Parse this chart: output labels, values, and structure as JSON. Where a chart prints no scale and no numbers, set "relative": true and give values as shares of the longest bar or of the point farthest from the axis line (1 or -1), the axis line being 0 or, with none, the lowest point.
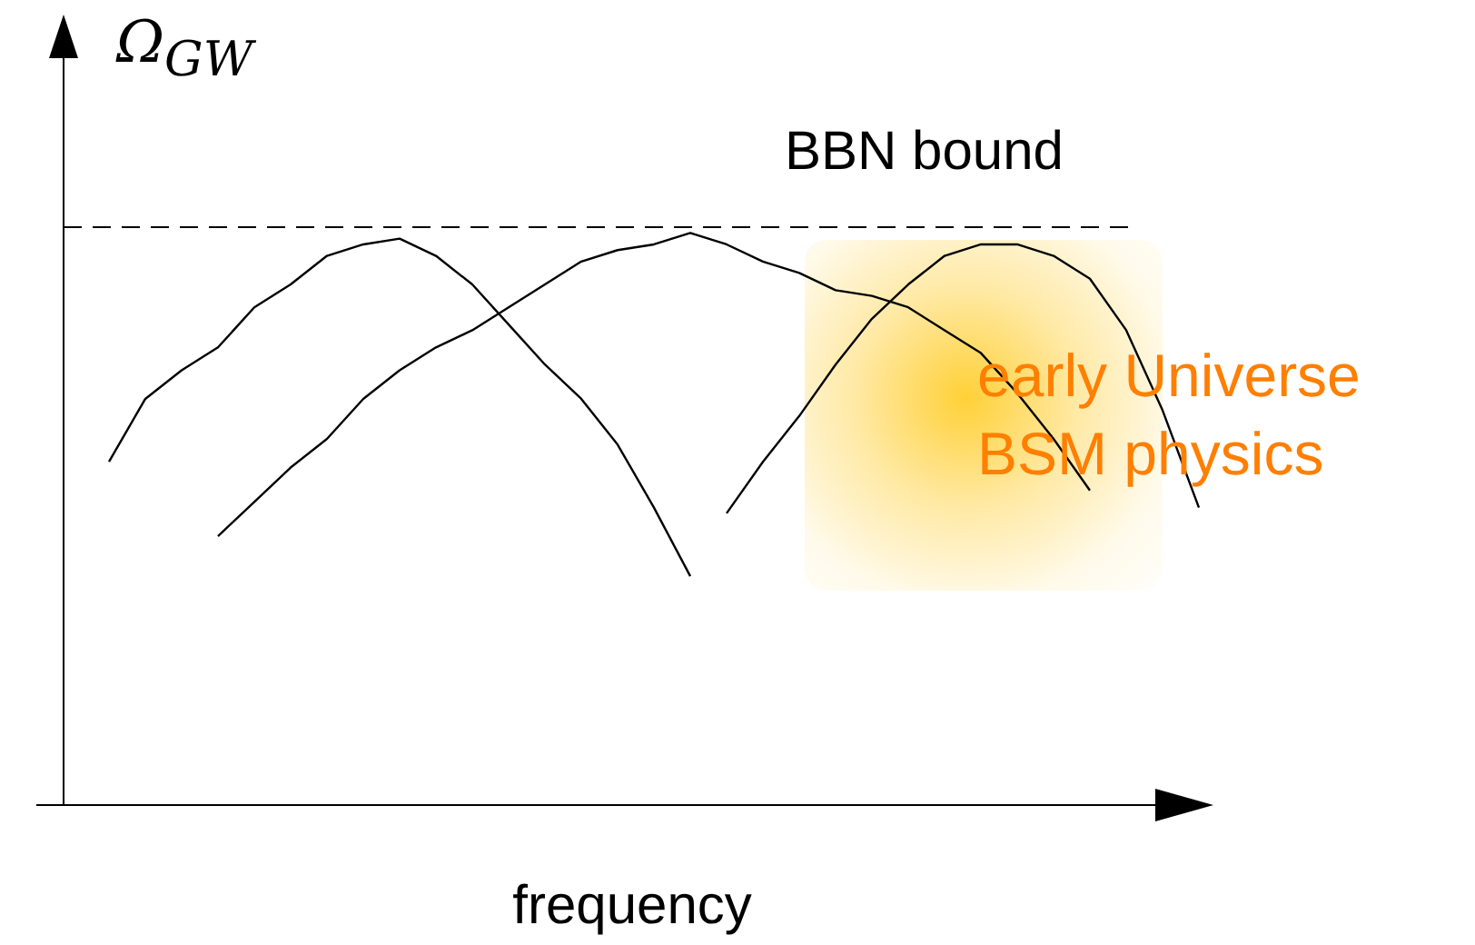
{
  "chart_data": {
    "type": "line",
    "relative": true,
    "xlabel": "frequency",
    "ylabel": "Ω$_{GW}$",
    "categories": [
      null,
      null,
      null,
      null,
      null,
      null,
      null,
      null,
      null,
      null,
      null,
      null,
      null,
      null,
      null,
      null,
      null,
      null,
      null,
      null,
      null,
      null,
      null,
      null,
      null,
      null,
      null,
      null,
      null,
      null,
      null
    ],
    "series": [
      {
        "color": "#000000",
        "values": [
          0.6,
          0.71,
          0.76,
          0.8,
          0.87,
          0.91,
          0.96,
          0.98,
          0.99,
          0.96,
          0.91,
          0.84,
          0.77,
          0.71,
          0.63,
          0.52,
          0.4,
          null,
          null,
          null,
          null,
          null,
          null,
          null,
          null,
          null,
          null,
          null,
          null,
          null,
          null
        ]
      },
      {
        "color": "#000000",
        "values": [
          null,
          null,
          null,
          0.47,
          0.53,
          0.59,
          0.64,
          0.71,
          0.76,
          0.8,
          0.83,
          0.87,
          0.91,
          0.95,
          0.97,
          0.98,
          1.0,
          0.98,
          0.95,
          0.93,
          0.9,
          0.89,
          0.87,
          0.83,
          0.79,
          0.72,
          0.64,
          0.55,
          null,
          null,
          null
        ]
      },
      {
        "color": "#000000",
        "values": [
          null,
          null,
          null,
          null,
          null,
          null,
          null,
          null,
          null,
          null,
          null,
          null,
          null,
          null,
          null,
          null,
          null,
          0.51,
          0.6,
          0.68,
          0.77,
          0.85,
          0.91,
          0.96,
          0.98,
          0.98,
          0.96,
          0.92,
          0.83,
          0.69,
          0.52
        ]
      }
    ],
    "ref_lines": [
      {
        "axis": "y",
        "value": 1.01,
        "label": "BBN bound",
        "line_style": "dashed",
        "color": "#000000"
      }
    ],
    "annotations": [
      "early Universe\nBSM physics"
    ],
    "grid": false,
    "legend": false,
    "marker": "none",
    "line_style": "solid"
  }
}
